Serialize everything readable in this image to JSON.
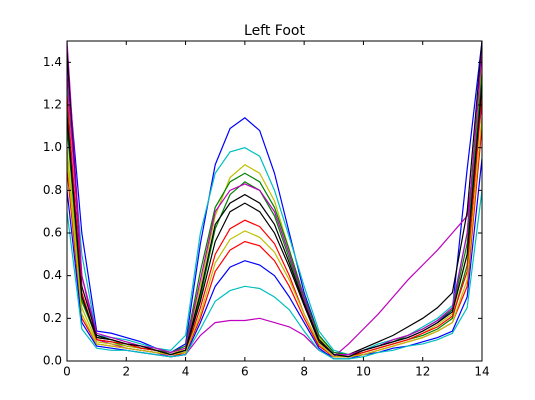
{
  "chart_data": {
    "type": "line",
    "title": "Left Foot",
    "x": [
      0,
      0.5,
      1,
      1.5,
      2,
      2.5,
      3,
      3.5,
      4,
      4.5,
      5,
      5.5,
      6,
      6.5,
      7,
      7.5,
      8,
      8.5,
      9,
      9.5,
      10,
      10.5,
      11,
      11.5,
      12,
      12.5,
      13,
      13.5,
      14
    ],
    "xlim": [
      0,
      14
    ],
    "xticks": [
      0,
      2,
      4,
      6,
      8,
      10,
      12,
      14
    ],
    "ylim": [
      0,
      1.5
    ],
    "yticks": [
      {
        "value": 0,
        "label": "0.0"
      },
      0.2,
      0.4,
      0.6,
      0.8,
      {
        "value": 1,
        "label": "1.0"
      },
      1.2,
      1.4
    ],
    "grid": false,
    "series": [
      {
        "color": "#0000ff",
        "values": [
          1.4,
          0.6,
          0.14,
          0.13,
          0.11,
          0.09,
          0.06,
          0.04,
          0.08,
          0.55,
          0.92,
          1.09,
          1.14,
          1.08,
          0.88,
          0.6,
          0.32,
          0.12,
          0.04,
          0.03,
          0.05,
          0.07,
          0.09,
          0.11,
          0.14,
          0.18,
          0.24,
          0.9,
          1.5
        ]
      },
      {
        "color": "#008000",
        "values": [
          1.2,
          0.3,
          0.1,
          0.09,
          0.07,
          0.06,
          0.05,
          0.03,
          0.05,
          0.3,
          0.62,
          0.78,
          0.84,
          0.8,
          0.68,
          0.48,
          0.28,
          0.1,
          0.03,
          0.02,
          0.04,
          0.06,
          0.08,
          0.1,
          0.12,
          0.15,
          0.2,
          0.45,
          1.3
        ]
      },
      {
        "color": "#ff0000",
        "values": [
          0.9,
          0.2,
          0.08,
          0.07,
          0.06,
          0.05,
          0.04,
          0.02,
          0.04,
          0.25,
          0.5,
          0.62,
          0.66,
          0.63,
          0.55,
          0.4,
          0.22,
          0.08,
          0.02,
          0.02,
          0.03,
          0.05,
          0.07,
          0.09,
          0.11,
          0.14,
          0.18,
          0.35,
          1.1
        ]
      },
      {
        "color": "#00bfbf",
        "values": [
          1.3,
          0.5,
          0.12,
          0.11,
          0.1,
          0.08,
          0.06,
          0.05,
          0.12,
          0.6,
          0.88,
          0.98,
          1.0,
          0.96,
          0.8,
          0.58,
          0.35,
          0.14,
          0.05,
          0.03,
          0.05,
          0.08,
          0.1,
          0.12,
          0.16,
          0.2,
          0.26,
          0.6,
          1.45
        ]
      },
      {
        "color": "#bf00bf",
        "values": [
          1.5,
          0.4,
          0.1,
          0.08,
          0.06,
          0.05,
          0.04,
          0.02,
          0.03,
          0.12,
          0.18,
          0.19,
          0.19,
          0.2,
          0.18,
          0.16,
          0.12,
          0.05,
          0.02,
          0.08,
          0.15,
          0.22,
          0.3,
          0.38,
          0.45,
          0.52,
          0.6,
          0.68,
          1.2
        ]
      },
      {
        "color": "#bfbf00",
        "values": [
          1.0,
          0.25,
          0.09,
          0.08,
          0.07,
          0.06,
          0.05,
          0.03,
          0.06,
          0.35,
          0.68,
          0.86,
          0.92,
          0.88,
          0.75,
          0.52,
          0.3,
          0.11,
          0.03,
          0.02,
          0.04,
          0.06,
          0.08,
          0.1,
          0.13,
          0.17,
          0.22,
          0.5,
          1.4
        ]
      },
      {
        "color": "#000000",
        "values": [
          1.45,
          0.35,
          0.12,
          0.1,
          0.08,
          0.06,
          0.05,
          0.03,
          0.05,
          0.28,
          0.56,
          0.7,
          0.74,
          0.7,
          0.6,
          0.44,
          0.26,
          0.09,
          0.03,
          0.03,
          0.06,
          0.09,
          0.12,
          0.16,
          0.2,
          0.25,
          0.32,
          0.7,
          1.5
        ]
      },
      {
        "color": "#0000ff",
        "values": [
          0.8,
          0.18,
          0.07,
          0.06,
          0.05,
          0.04,
          0.03,
          0.02,
          0.03,
          0.18,
          0.35,
          0.44,
          0.47,
          0.45,
          0.4,
          0.3,
          0.18,
          0.06,
          0.01,
          0.01,
          0.03,
          0.04,
          0.06,
          0.07,
          0.09,
          0.11,
          0.14,
          0.3,
          0.95
        ]
      },
      {
        "color": "#008000",
        "values": [
          1.1,
          0.28,
          0.11,
          0.1,
          0.08,
          0.07,
          0.05,
          0.04,
          0.07,
          0.42,
          0.72,
          0.84,
          0.88,
          0.84,
          0.72,
          0.52,
          0.3,
          0.12,
          0.04,
          0.03,
          0.05,
          0.07,
          0.09,
          0.12,
          0.15,
          0.19,
          0.24,
          0.55,
          1.35
        ]
      },
      {
        "color": "#ff0000",
        "values": [
          1.25,
          0.32,
          0.1,
          0.09,
          0.08,
          0.06,
          0.05,
          0.03,
          0.04,
          0.2,
          0.42,
          0.52,
          0.56,
          0.54,
          0.47,
          0.35,
          0.2,
          0.07,
          0.02,
          0.02,
          0.04,
          0.06,
          0.08,
          0.1,
          0.13,
          0.16,
          0.21,
          0.42,
          1.25
        ]
      },
      {
        "color": "#00bfbf",
        "values": [
          0.7,
          0.15,
          0.06,
          0.05,
          0.05,
          0.04,
          0.03,
          0.02,
          0.03,
          0.15,
          0.28,
          0.33,
          0.35,
          0.34,
          0.3,
          0.24,
          0.14,
          0.05,
          0.01,
          0.01,
          0.02,
          0.04,
          0.05,
          0.07,
          0.08,
          0.1,
          0.13,
          0.25,
          0.8
        ]
      },
      {
        "color": "#bf00bf",
        "values": [
          1.35,
          0.4,
          0.13,
          0.11,
          0.09,
          0.07,
          0.06,
          0.04,
          0.06,
          0.38,
          0.7,
          0.8,
          0.83,
          0.8,
          0.7,
          0.5,
          0.29,
          0.1,
          0.03,
          0.03,
          0.05,
          0.07,
          0.1,
          0.12,
          0.15,
          0.19,
          0.25,
          0.6,
          1.45
        ]
      },
      {
        "color": "#bfbf00",
        "values": [
          0.95,
          0.22,
          0.08,
          0.07,
          0.06,
          0.05,
          0.04,
          0.03,
          0.04,
          0.22,
          0.46,
          0.57,
          0.61,
          0.58,
          0.51,
          0.38,
          0.22,
          0.08,
          0.02,
          0.02,
          0.03,
          0.05,
          0.07,
          0.09,
          0.11,
          0.14,
          0.18,
          0.38,
          1.15
        ]
      },
      {
        "color": "#000000",
        "values": [
          1.15,
          0.3,
          0.11,
          0.1,
          0.08,
          0.07,
          0.05,
          0.03,
          0.05,
          0.32,
          0.64,
          0.74,
          0.78,
          0.74,
          0.64,
          0.46,
          0.27,
          0.1,
          0.03,
          0.02,
          0.05,
          0.07,
          0.09,
          0.11,
          0.14,
          0.18,
          0.23,
          0.5,
          1.3
        ]
      }
    ]
  }
}
